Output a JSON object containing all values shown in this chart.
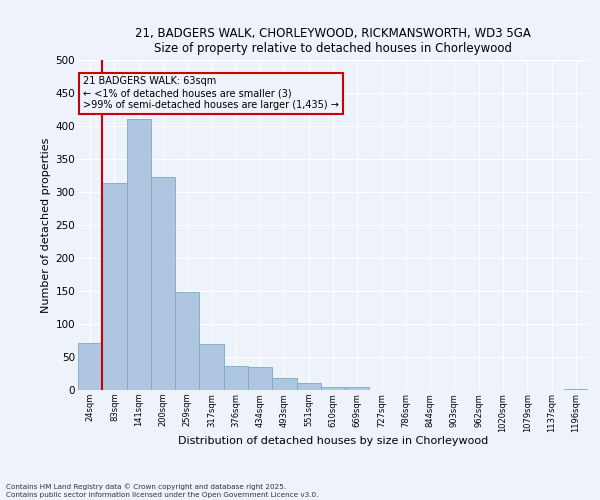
{
  "title_line1": "21, BADGERS WALK, CHORLEYWOOD, RICKMANSWORTH, WD3 5GA",
  "title_line2": "Size of property relative to detached houses in Chorleywood",
  "xlabel": "Distribution of detached houses by size in Chorleywood",
  "ylabel": "Number of detached properties",
  "categories": [
    "24sqm",
    "83sqm",
    "141sqm",
    "200sqm",
    "259sqm",
    "317sqm",
    "376sqm",
    "434sqm",
    "493sqm",
    "551sqm",
    "610sqm",
    "669sqm",
    "727sqm",
    "786sqm",
    "844sqm",
    "903sqm",
    "962sqm",
    "1020sqm",
    "1079sqm",
    "1137sqm",
    "1196sqm"
  ],
  "values": [
    71,
    313,
    410,
    323,
    149,
    69,
    37,
    35,
    18,
    11,
    5,
    5,
    0,
    0,
    0,
    0,
    0,
    0,
    0,
    0,
    1
  ],
  "bar_color": "#aec6df",
  "bar_edge_color": "#7aaac8",
  "annotation_box_color": "#cc0000",
  "annotation_line1": "21 BADGERS WALK: 63sqm",
  "annotation_line2": "← <1% of detached houses are smaller (3)",
  "annotation_line3": ">99% of semi-detached houses are larger (1,435) →",
  "marker_color": "#cc0000",
  "ylim": [
    0,
    500
  ],
  "yticks": [
    0,
    50,
    100,
    150,
    200,
    250,
    300,
    350,
    400,
    450,
    500
  ],
  "background_color": "#eef2fb",
  "grid_color": "#ffffff",
  "footnote_line1": "Contains HM Land Registry data © Crown copyright and database right 2025.",
  "footnote_line2": "Contains public sector information licensed under the Open Government Licence v3.0."
}
